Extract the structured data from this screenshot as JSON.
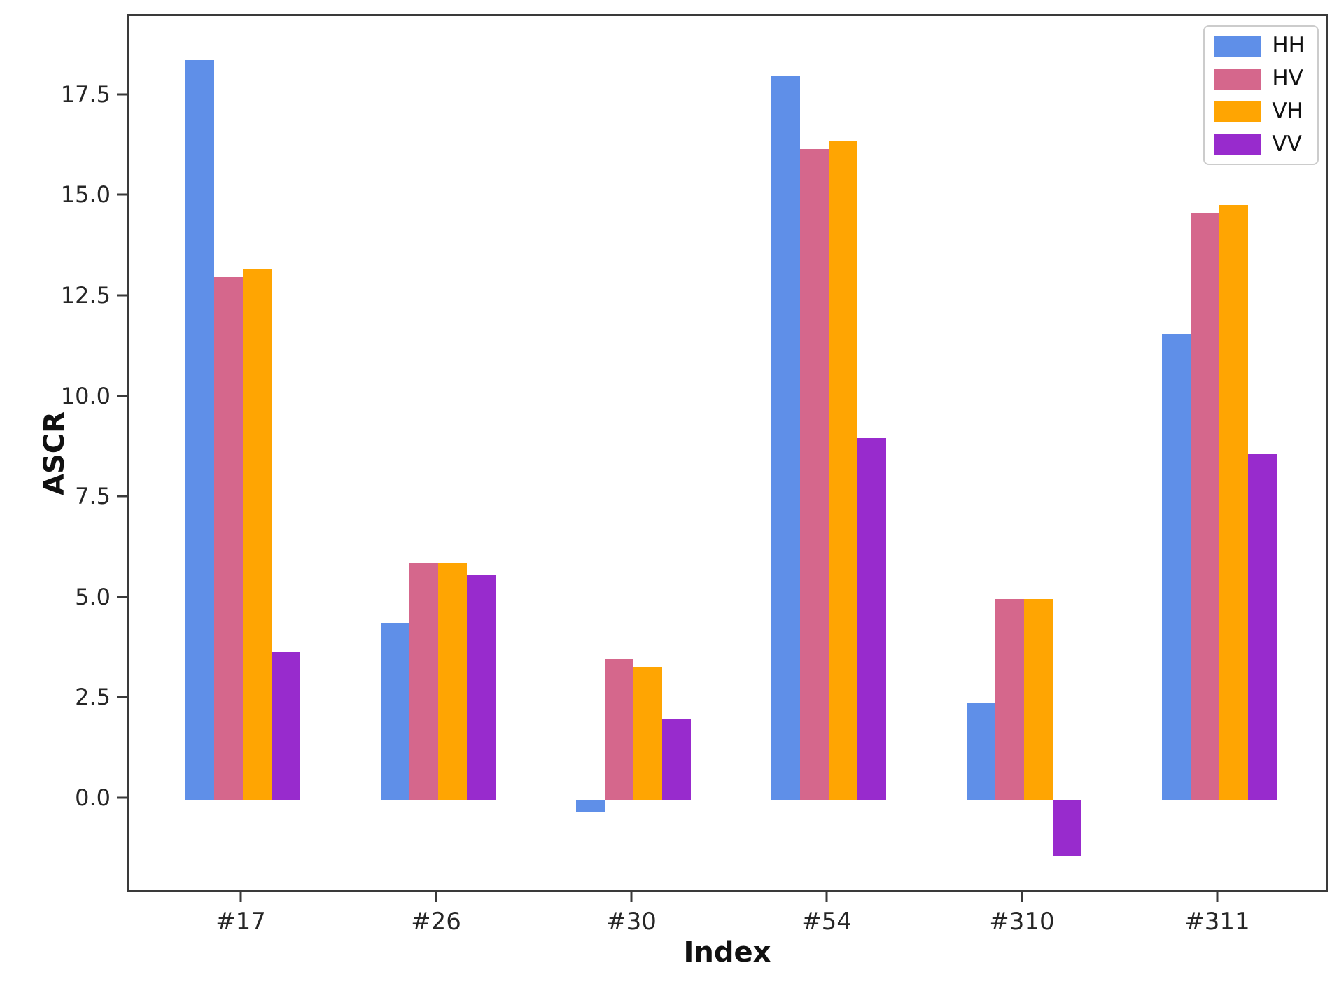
{
  "chart_data": {
    "type": "bar",
    "title": "",
    "xlabel": "Index",
    "ylabel": "ASCR",
    "categories": [
      "#17",
      "#26",
      "#30",
      "#54",
      "#310",
      "#311"
    ],
    "series": [
      {
        "name": "HH",
        "color": "#5f8fe8",
        "values": [
          18.4,
          4.4,
          -0.3,
          18.0,
          2.4,
          11.6
        ]
      },
      {
        "name": "HV",
        "color": "#d5678c",
        "values": [
          13.0,
          5.9,
          3.5,
          16.2,
          5.0,
          14.6
        ]
      },
      {
        "name": "VH",
        "color": "#ffa502",
        "values": [
          13.2,
          5.9,
          3.3,
          16.4,
          5.0,
          14.8
        ]
      },
      {
        "name": "VV",
        "color": "#982bcd",
        "values": [
          3.7,
          5.6,
          2.0,
          9.0,
          -1.4,
          8.6
        ]
      }
    ],
    "yticks": [
      0.0,
      2.5,
      5.0,
      7.5,
      10.0,
      12.5,
      15.0,
      17.5
    ],
    "ylim": [
      -2.35,
      19.5
    ],
    "legend_position": "upper right",
    "grid": false,
    "spine_color": "#3a3a3a"
  }
}
